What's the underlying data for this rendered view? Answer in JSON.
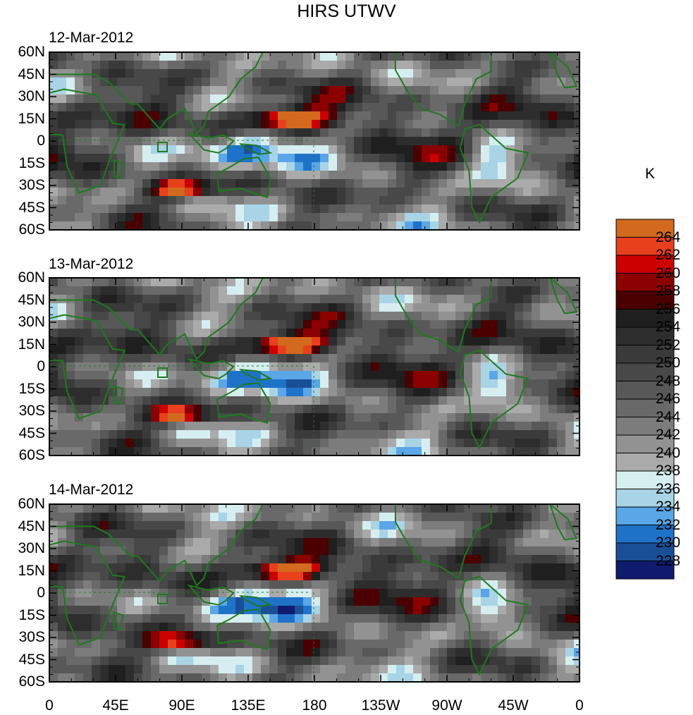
{
  "title": "HIRS UTWV",
  "panels": [
    {
      "date": "12-Mar-2012"
    },
    {
      "date": "13-Mar-2012"
    },
    {
      "date": "14-Mar-2012"
    }
  ],
  "y_ticks": [
    "60N",
    "45N",
    "30N",
    "15N",
    "0",
    "15S",
    "30S",
    "45S",
    "60S"
  ],
  "x_ticks": [
    "0",
    "45E",
    "90E",
    "135E",
    "180",
    "135W",
    "90W",
    "45W",
    "0"
  ],
  "colorbar": {
    "unit": "K",
    "labels": [
      "264",
      "262",
      "260",
      "258",
      "256",
      "254",
      "252",
      "250",
      "248",
      "246",
      "244",
      "242",
      "240",
      "238",
      "236",
      "234",
      "232",
      "230",
      "228"
    ],
    "colors": [
      "#d2691e",
      "#e8401c",
      "#cc0000",
      "#8b0000",
      "#4a0000",
      "#1f1f1f",
      "#2d2d2d",
      "#3a3a3a",
      "#484848",
      "#585858",
      "#696969",
      "#7c7c7c",
      "#929292",
      "#aaaaaa",
      "#d6eef0",
      "#a9d4e6",
      "#5aa6e6",
      "#1e73c8",
      "#1a4f98",
      "#101a6e"
    ]
  },
  "land_color": "#1e7a1e"
}
